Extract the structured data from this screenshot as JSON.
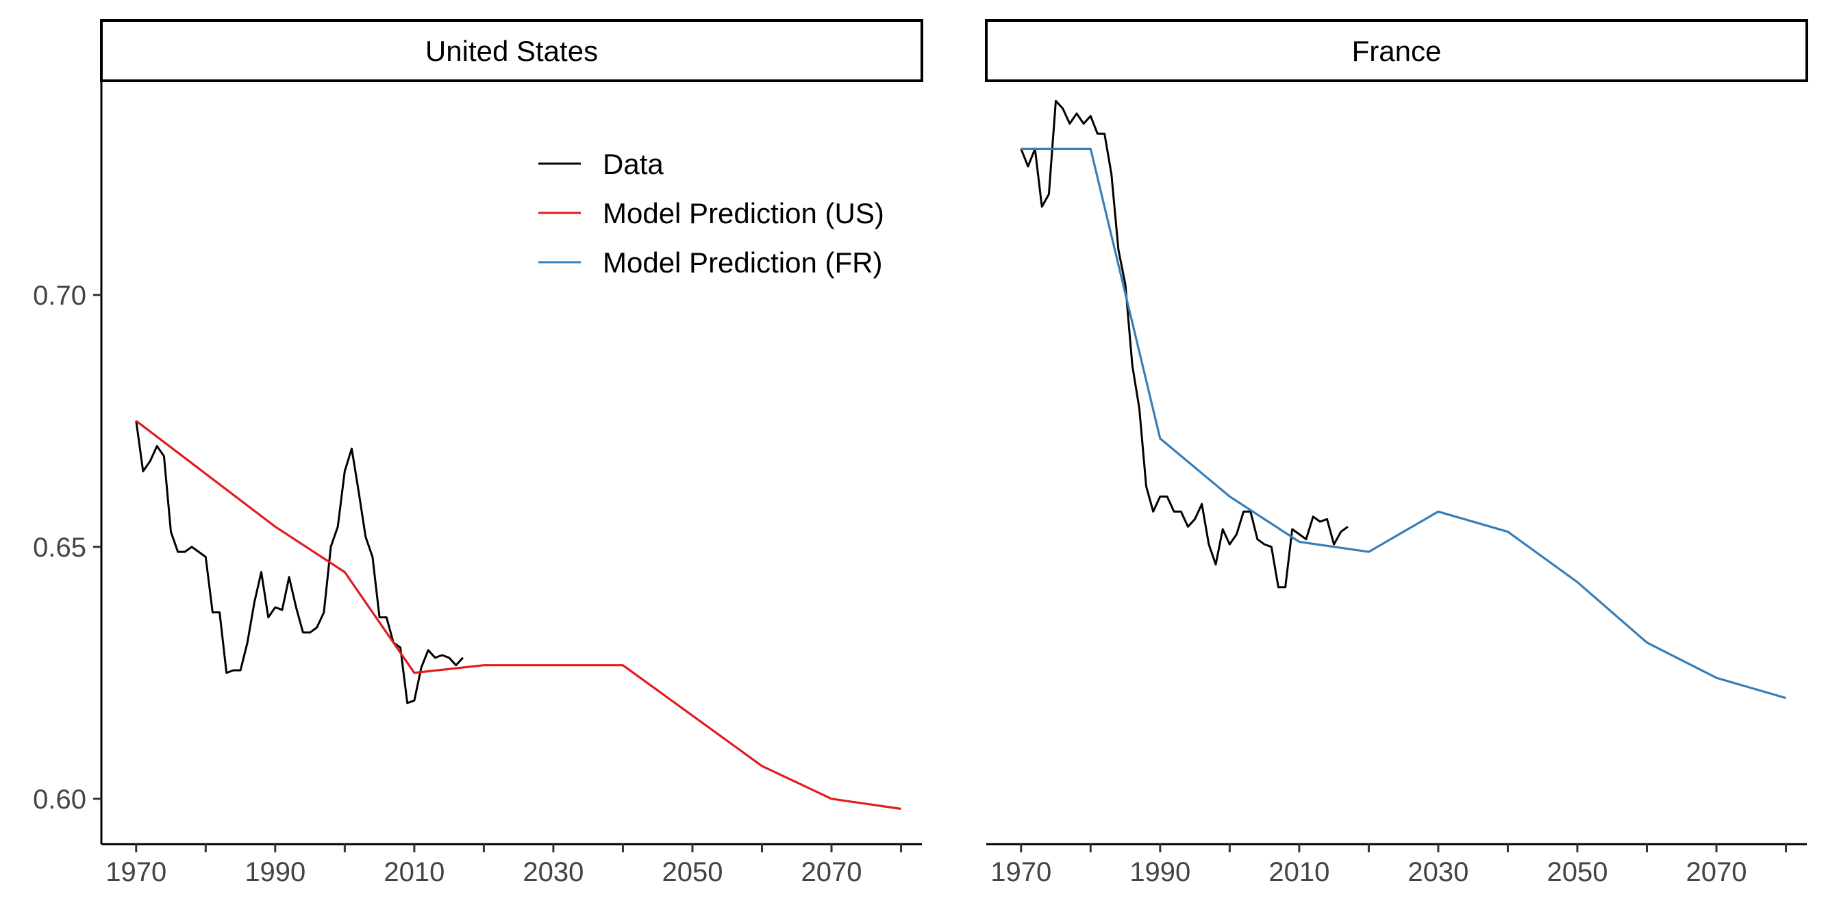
{
  "chart_data": {
    "type": "line",
    "facets": [
      "United States",
      "France"
    ],
    "x_ticks": [
      1970,
      1990,
      2010,
      2030,
      2050,
      2070
    ],
    "x_minor_ticks": [
      1980,
      2000,
      2020,
      2040,
      2060,
      2080
    ],
    "xlim": [
      1965,
      2083
    ],
    "y_ticks": [
      0.6,
      0.65,
      0.7
    ],
    "y_tick_labels": [
      "0.60",
      "0.65",
      "0.70"
    ],
    "ylim": [
      0.591,
      0.7425
    ],
    "grid": false,
    "legend_position": "top-right of first panel",
    "legend": [
      {
        "key": "data",
        "label": "Data",
        "color": "#000000"
      },
      {
        "key": "us",
        "label": "Model Prediction (US)",
        "color": "#e41a1c"
      },
      {
        "key": "fr",
        "label": "Model Prediction (FR)",
        "color": "#377eb8"
      }
    ],
    "panels": [
      {
        "facet": "United States",
        "series": [
          {
            "key": "data",
            "x": [
              1970,
              1971,
              1972,
              1973,
              1974,
              1975,
              1976,
              1977,
              1978,
              1979,
              1980,
              1981,
              1982,
              1983,
              1984,
              1985,
              1986,
              1987,
              1988,
              1989,
              1990,
              1991,
              1992,
              1993,
              1994,
              1995,
              1996,
              1997,
              1998,
              1999,
              2000,
              2001,
              2002,
              2003,
              2004,
              2005,
              2006,
              2007,
              2008,
              2009,
              2010,
              2011,
              2012,
              2013,
              2014,
              2015,
              2016,
              2017
            ],
            "y": [
              0.675,
              0.665,
              0.667,
              0.67,
              0.668,
              0.653,
              0.649,
              0.649,
              0.65,
              0.649,
              0.648,
              0.637,
              0.637,
              0.625,
              0.6255,
              0.6255,
              0.631,
              0.639,
              0.645,
              0.636,
              0.638,
              0.6375,
              0.644,
              0.638,
              0.633,
              0.633,
              0.634,
              0.637,
              0.65,
              0.654,
              0.665,
              0.6695,
              0.661,
              0.652,
              0.648,
              0.636,
              0.636,
              0.631,
              0.63,
              0.619,
              0.6195,
              0.626,
              0.6295,
              0.628,
              0.6285,
              0.628,
              0.6265,
              0.628
            ]
          },
          {
            "key": "us",
            "x": [
              1970,
              1990,
              2000,
              2010,
              2020,
              2030,
              2040,
              2050,
              2060,
              2070,
              2080
            ],
            "y": [
              0.675,
              0.654,
              0.645,
              0.625,
              0.6265,
              0.6265,
              0.6265,
              0.6165,
              0.6065,
              0.6,
              0.598
            ]
          }
        ]
      },
      {
        "facet": "France",
        "series": [
          {
            "key": "data",
            "x": [
              1970,
              1971,
              1972,
              1973,
              1974,
              1975,
              1976,
              1977,
              1978,
              1979,
              1980,
              1981,
              1982,
              1983,
              1984,
              1985,
              1986,
              1987,
              1988,
              1989,
              1990,
              1991,
              1992,
              1993,
              1994,
              1995,
              1996,
              1997,
              1998,
              1999,
              2000,
              2001,
              2002,
              2003,
              2004,
              2005,
              2006,
              2007,
              2008,
              2009,
              2010,
              2011,
              2012,
              2013,
              2014,
              2015,
              2016,
              2017
            ],
            "y": [
              0.729,
              0.7255,
              0.729,
              0.7175,
              0.72,
              0.7385,
              0.737,
              0.734,
              0.736,
              0.734,
              0.7355,
              0.732,
              0.732,
              0.724,
              0.709,
              0.702,
              0.686,
              0.6775,
              0.662,
              0.657,
              0.66,
              0.66,
              0.657,
              0.657,
              0.654,
              0.6555,
              0.6585,
              0.6505,
              0.6465,
              0.6535,
              0.6505,
              0.6525,
              0.657,
              0.657,
              0.6515,
              0.6505,
              0.65,
              0.642,
              0.642,
              0.6535,
              0.6525,
              0.6515,
              0.656,
              0.655,
              0.6555,
              0.6505,
              0.653,
              0.654
            ]
          },
          {
            "key": "fr",
            "x": [
              1970,
              1980,
              1990,
              2000,
              2010,
              2020,
              2030,
              2040,
              2050,
              2060,
              2070,
              2080
            ],
            "y": [
              0.729,
              0.729,
              0.6715,
              0.66,
              0.651,
              0.649,
              0.657,
              0.653,
              0.643,
              0.631,
              0.624,
              0.62
            ]
          }
        ]
      }
    ]
  }
}
